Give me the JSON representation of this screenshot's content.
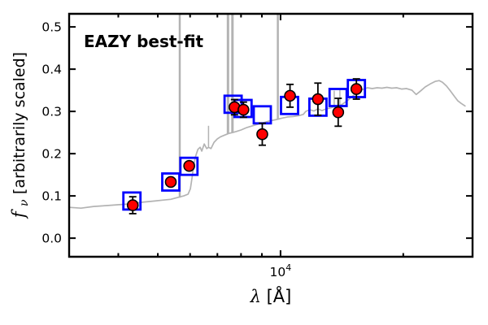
{
  "figure": {
    "annotation": {
      "text": "EAZY best-fit",
      "color": "#ff0000"
    },
    "xlabel": {
      "symbol": "λ",
      "rest": " [Å]"
    },
    "ylabel": {
      "symbol": "f",
      "sub": "ν",
      "rest": " [arbitrarily scaled]"
    }
  },
  "chart_data": {
    "type": "line",
    "title": "EAZY best-fit",
    "xlabel": "λ [Å]",
    "ylabel": "f_ν [arbitrarily scaled]",
    "xscale": "log",
    "xlim": [
      3030,
      29580
    ],
    "ylim": [
      -0.044,
      0.531
    ],
    "grid": false,
    "legend": false,
    "xticks": {
      "major": [
        {
          "value": 10000,
          "label_base": "10",
          "label_exp": "4"
        }
      ],
      "minor": [
        4000,
        5000,
        6000,
        7000,
        8000,
        9000,
        20000
      ]
    },
    "yticks": {
      "major": [
        0.0,
        0.1,
        0.2,
        0.3,
        0.4,
        0.5
      ],
      "decimals": 1
    },
    "colors": {
      "spectrum": "#b3b3b3",
      "model_square": "#0000ff",
      "observed_fill": "#ff0000",
      "observed_edge": "#000000",
      "errorbar": "#000000",
      "axes": "#000000"
    },
    "series": [
      {
        "name": "best-fit template spectrum",
        "type": "line",
        "color_key": "spectrum",
        "points": [
          [
            3030,
            0.073
          ],
          [
            3240,
            0.071
          ],
          [
            3480,
            0.075
          ],
          [
            3720,
            0.077
          ],
          [
            3990,
            0.079
          ],
          [
            4280,
            0.081
          ],
          [
            4580,
            0.085
          ],
          [
            4910,
            0.088
          ],
          [
            5140,
            0.09
          ],
          [
            5380,
            0.092
          ],
          [
            5580,
            0.096
          ],
          [
            5790,
            0.1
          ],
          [
            5930,
            0.104
          ],
          [
            6010,
            0.117
          ],
          [
            6070,
            0.144
          ],
          [
            6120,
            0.171
          ],
          [
            6180,
            0.192
          ],
          [
            6270,
            0.21
          ],
          [
            6350,
            0.215
          ],
          [
            6410,
            0.206
          ],
          [
            6500,
            0.223
          ],
          [
            6590,
            0.212
          ],
          [
            6660,
            0.215
          ],
          [
            6750,
            0.212
          ],
          [
            6870,
            0.227
          ],
          [
            7000,
            0.235
          ],
          [
            7130,
            0.24
          ],
          [
            7300,
            0.244
          ],
          [
            7470,
            0.248
          ],
          [
            7640,
            0.25
          ],
          [
            7820,
            0.253
          ],
          [
            8000,
            0.256
          ],
          [
            8270,
            0.262
          ],
          [
            8540,
            0.266
          ],
          [
            8820,
            0.27
          ],
          [
            9060,
            0.273
          ],
          [
            9360,
            0.277
          ],
          [
            9580,
            0.279
          ],
          [
            9800,
            0.281
          ],
          [
            10080,
            0.284
          ],
          [
            10400,
            0.287
          ],
          [
            10740,
            0.288
          ],
          [
            11090,
            0.29
          ],
          [
            11370,
            0.293
          ],
          [
            11530,
            0.3
          ],
          [
            11800,
            0.304
          ],
          [
            12070,
            0.301
          ],
          [
            12350,
            0.306
          ],
          [
            12640,
            0.302
          ],
          [
            12930,
            0.306
          ],
          [
            13230,
            0.308
          ],
          [
            13540,
            0.311
          ],
          [
            13850,
            0.313
          ],
          [
            14170,
            0.317
          ],
          [
            14570,
            0.325
          ],
          [
            14970,
            0.335
          ],
          [
            15390,
            0.344
          ],
          [
            15820,
            0.351
          ],
          [
            16330,
            0.356
          ],
          [
            16790,
            0.354
          ],
          [
            17260,
            0.356
          ],
          [
            17740,
            0.355
          ],
          [
            18230,
            0.357
          ],
          [
            18740,
            0.355
          ],
          [
            19270,
            0.356
          ],
          [
            19810,
            0.353
          ],
          [
            20360,
            0.354
          ],
          [
            21020,
            0.35
          ],
          [
            21510,
            0.34
          ],
          [
            22020,
            0.348
          ],
          [
            22640,
            0.358
          ],
          [
            23290,
            0.365
          ],
          [
            23950,
            0.371
          ],
          [
            24510,
            0.373
          ],
          [
            24960,
            0.369
          ],
          [
            25540,
            0.36
          ],
          [
            26130,
            0.348
          ],
          [
            26730,
            0.335
          ],
          [
            27220,
            0.325
          ],
          [
            27720,
            0.319
          ],
          [
            28350,
            0.313
          ]
        ]
      },
      {
        "name": "template emission lines",
        "type": "vlines",
        "color_key": "spectrum",
        "lines": [
          [
            5660,
            0.096,
            0.62,
            2.5
          ],
          [
            6660,
            0.215,
            0.266,
            1.5
          ],
          [
            7430,
            0.247,
            0.62,
            3.0
          ],
          [
            7620,
            0.25,
            0.62,
            3.0
          ],
          [
            9850,
            0.281,
            0.62,
            2.5
          ],
          [
            13540,
            0.311,
            0.349,
            1.5
          ],
          [
            13980,
            0.314,
            0.353,
            1.5
          ]
        ]
      },
      {
        "name": "model photometry (template fluxes)",
        "type": "scatter",
        "marker": "open-square",
        "color_key": "model_square",
        "points": [
          [
            4320,
            0.088
          ],
          [
            5380,
            0.133
          ],
          [
            5960,
            0.17
          ],
          [
            7650,
            0.317
          ],
          [
            8090,
            0.307
          ],
          [
            9020,
            0.292
          ],
          [
            10520,
            0.314
          ],
          [
            12350,
            0.31
          ],
          [
            13840,
            0.333
          ],
          [
            15350,
            0.354
          ]
        ]
      },
      {
        "name": "observed photometry",
        "type": "scatter",
        "marker": "filled-circle-errorbar",
        "color_key": "observed_fill",
        "points": [
          [
            4340,
            0.078,
            0.02
          ],
          [
            5380,
            0.133,
            0.008
          ],
          [
            5970,
            0.171,
            0.008
          ],
          [
            7710,
            0.31,
            0.018
          ],
          [
            8110,
            0.304,
            0.018
          ],
          [
            9020,
            0.246,
            0.026
          ],
          [
            10550,
            0.337,
            0.027
          ],
          [
            12350,
            0.329,
            0.038
          ],
          [
            13850,
            0.298,
            0.033
          ],
          [
            15350,
            0.353,
            0.024
          ]
        ]
      }
    ]
  }
}
